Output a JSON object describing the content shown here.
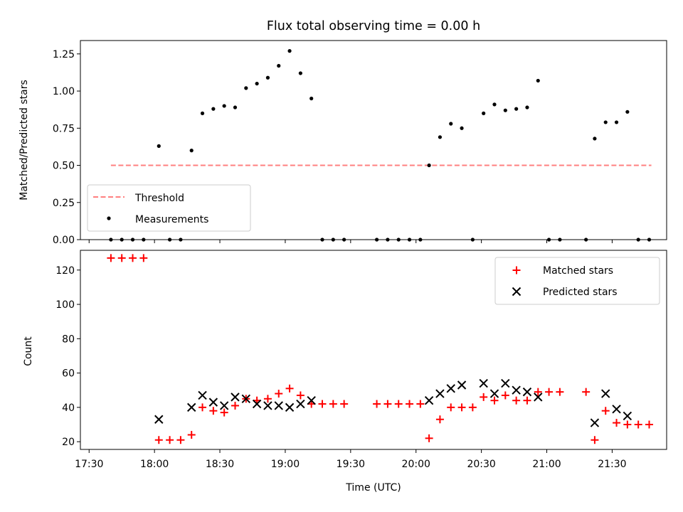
{
  "chart_data": [
    {
      "type": "scatter",
      "title": "Flux total observing time = 0.00 h",
      "ylabel": "Matched/Predicted stars",
      "xlabel": "",
      "ylim": [
        0,
        1.34
      ],
      "yticks": [
        "0.00",
        "0.25",
        "0.50",
        "0.75",
        "1.00",
        "1.25"
      ],
      "threshold": {
        "label": "Threshold",
        "y": 0.5,
        "x_start": "17:40",
        "x_end": "21:48",
        "color": "#ff7f7f"
      },
      "measurements_label": "Measurements",
      "measurements": [
        [
          "17:40",
          0
        ],
        [
          "17:45",
          0
        ],
        [
          "17:50",
          0
        ],
        [
          "17:55",
          0
        ],
        [
          "18:02",
          0.63
        ],
        [
          "18:07",
          0
        ],
        [
          "18:12",
          0
        ],
        [
          "18:17",
          0.6
        ],
        [
          "18:22",
          0.85
        ],
        [
          "18:27",
          0.88
        ],
        [
          "18:32",
          0.9
        ],
        [
          "18:37",
          0.89
        ],
        [
          "18:42",
          1.02
        ],
        [
          "18:47",
          1.05
        ],
        [
          "18:52",
          1.09
        ],
        [
          "18:57",
          1.17
        ],
        [
          "19:02",
          1.27
        ],
        [
          "19:07",
          1.12
        ],
        [
          "19:12",
          0.95
        ],
        [
          "19:17",
          0
        ],
        [
          "19:22",
          0
        ],
        [
          "19:27",
          0
        ],
        [
          "19:42",
          0
        ],
        [
          "19:47",
          0
        ],
        [
          "19:52",
          0
        ],
        [
          "19:57",
          0
        ],
        [
          "20:02",
          0
        ],
        [
          "20:06",
          0.5
        ],
        [
          "20:11",
          0.69
        ],
        [
          "20:16",
          0.78
        ],
        [
          "20:21",
          0.75
        ],
        [
          "20:26",
          0
        ],
        [
          "20:31",
          0.85
        ],
        [
          "20:36",
          0.91
        ],
        [
          "20:41",
          0.87
        ],
        [
          "20:46",
          0.88
        ],
        [
          "20:51",
          0.89
        ],
        [
          "20:56",
          1.07
        ],
        [
          "21:01",
          0
        ],
        [
          "21:06",
          0
        ],
        [
          "21:18",
          0
        ],
        [
          "21:22",
          0.68
        ],
        [
          "21:27",
          0.79
        ],
        [
          "21:32",
          0.79
        ],
        [
          "21:37",
          0.86
        ],
        [
          "21:42",
          0
        ],
        [
          "21:47",
          0
        ]
      ]
    },
    {
      "type": "scatter",
      "title": "",
      "ylabel": "Count",
      "xlabel": "Time (UTC)",
      "ylim": [
        15.5,
        131.5
      ],
      "yticks": [
        "20",
        "40",
        "60",
        "80",
        "100",
        "120"
      ],
      "xticks": [
        "17:30",
        "18:00",
        "18:30",
        "19:00",
        "19:30",
        "20:00",
        "20:30",
        "21:00",
        "21:30"
      ],
      "series": [
        {
          "name": "Matched stars",
          "marker": "+",
          "color": "#ff0000",
          "points": [
            [
              "17:40",
              127
            ],
            [
              "17:45",
              127
            ],
            [
              "17:50",
              127
            ],
            [
              "17:55",
              127
            ],
            [
              "18:02",
              21
            ],
            [
              "18:07",
              21
            ],
            [
              "18:12",
              21
            ],
            [
              "18:17",
              24
            ],
            [
              "18:22",
              40
            ],
            [
              "18:27",
              38
            ],
            [
              "18:32",
              37
            ],
            [
              "18:37",
              41
            ],
            [
              "18:42",
              45
            ],
            [
              "18:47",
              44
            ],
            [
              "18:52",
              45
            ],
            [
              "18:57",
              48
            ],
            [
              "19:02",
              51
            ],
            [
              "19:07",
              47
            ],
            [
              "19:12",
              42
            ],
            [
              "19:17",
              42
            ],
            [
              "19:22",
              42
            ],
            [
              "19:27",
              42
            ],
            [
              "19:42",
              42
            ],
            [
              "19:47",
              42
            ],
            [
              "19:52",
              42
            ],
            [
              "19:57",
              42
            ],
            [
              "20:02",
              42
            ],
            [
              "20:06",
              22
            ],
            [
              "20:11",
              33
            ],
            [
              "20:16",
              40
            ],
            [
              "20:21",
              40
            ],
            [
              "20:26",
              40
            ],
            [
              "20:31",
              46
            ],
            [
              "20:36",
              44
            ],
            [
              "20:41",
              47
            ],
            [
              "20:46",
              44
            ],
            [
              "20:51",
              44
            ],
            [
              "20:56",
              49
            ],
            [
              "21:01",
              49
            ],
            [
              "21:06",
              49
            ],
            [
              "21:18",
              49
            ],
            [
              "21:22",
              21
            ],
            [
              "21:27",
              38
            ],
            [
              "21:32",
              31
            ],
            [
              "21:37",
              30
            ],
            [
              "21:42",
              30
            ],
            [
              "21:47",
              30
            ]
          ]
        },
        {
          "name": "Predicted stars",
          "marker": "x",
          "color": "#000000",
          "points": [
            [
              "18:02",
              33
            ],
            [
              "18:17",
              40
            ],
            [
              "18:22",
              47
            ],
            [
              "18:27",
              43
            ],
            [
              "18:32",
              41
            ],
            [
              "18:37",
              46
            ],
            [
              "18:42",
              45
            ],
            [
              "18:47",
              42
            ],
            [
              "18:52",
              41
            ],
            [
              "18:57",
              41
            ],
            [
              "19:02",
              40
            ],
            [
              "19:07",
              42
            ],
            [
              "19:12",
              44
            ],
            [
              "20:06",
              44
            ],
            [
              "20:11",
              48
            ],
            [
              "20:16",
              51
            ],
            [
              "20:21",
              53
            ],
            [
              "20:31",
              54
            ],
            [
              "20:36",
              48
            ],
            [
              "20:41",
              54
            ],
            [
              "20:46",
              50
            ],
            [
              "20:51",
              49
            ],
            [
              "20:56",
              46
            ],
            [
              "21:22",
              31
            ],
            [
              "21:27",
              48
            ],
            [
              "21:32",
              39
            ],
            [
              "21:37",
              35
            ]
          ]
        }
      ]
    }
  ]
}
